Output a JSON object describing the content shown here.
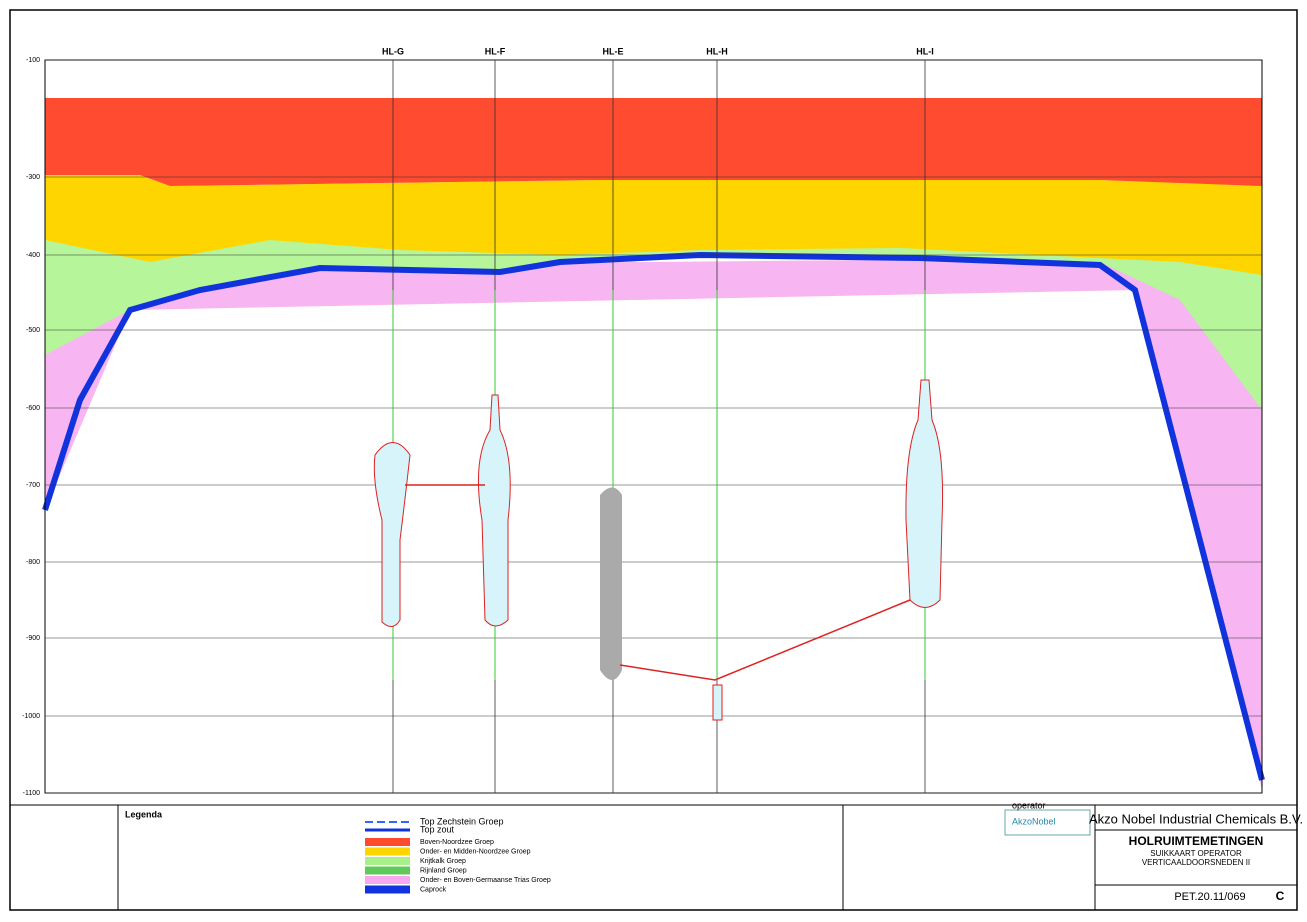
{
  "axis": {
    "depth_labels": [
      "-100",
      "-300",
      "-400",
      "-500",
      "-600",
      "-700",
      "-800",
      "-900",
      "-1000",
      "-1100"
    ]
  },
  "wells": [
    {
      "label": "HL-G"
    },
    {
      "label": "HL-F"
    },
    {
      "label": "HL-E"
    },
    {
      "label": "HL-H"
    },
    {
      "label": "HL-I"
    }
  ],
  "legend": {
    "title": "Legenda",
    "lines": [
      "Top Zechstein Groep",
      "Top zout"
    ],
    "items": [
      {
        "label": "Boven-Noordzee Groep",
        "color": "#ff4a2e"
      },
      {
        "label": "Onder- en Midden-Noordzee Groep",
        "color": "#ffd500"
      },
      {
        "label": "Krijtkalk Groep",
        "color": "#a8f08a"
      },
      {
        "label": "Rijnland Groep",
        "color": "#5fc95a"
      },
      {
        "label": "Onder- en Boven-Germaanse Trias Groep",
        "color": "#f7a8f0"
      },
      {
        "label": "Caprock",
        "color": "#1133dd"
      }
    ]
  },
  "title_block": {
    "company": "Akzo Nobel Industrial Chemicals B.V.",
    "title": "HOLRUIMTEMETINGEN",
    "lines": [
      "SUIKKAART OPERATOR",
      "VERTICAALDOORSNEDEN II"
    ],
    "operator_label": "operator",
    "logo": "AkzoNobel",
    "drawing_number": "PET.20.11/069",
    "sheet": "C"
  }
}
